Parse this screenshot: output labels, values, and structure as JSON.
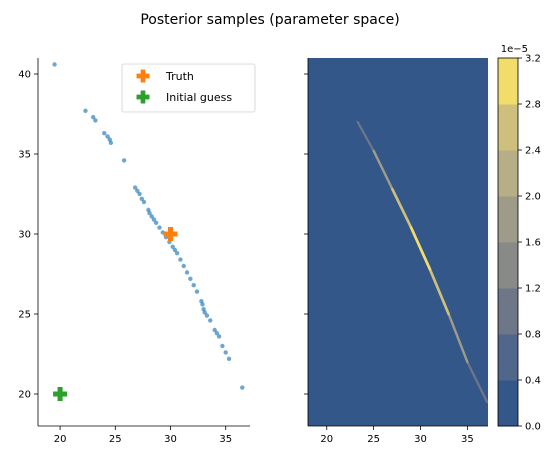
{
  "figure": {
    "title": "Posterior samples (parameter space)"
  },
  "chart_data": [
    {
      "type": "scatter",
      "title": "",
      "xlabel": "",
      "ylabel": "",
      "xlim": [
        18,
        37.2
      ],
      "ylim": [
        18,
        41
      ],
      "xticks": [
        20,
        25,
        30,
        35
      ],
      "yticks": [
        20,
        25,
        30,
        35,
        40
      ],
      "grid": false,
      "legend": "top-center",
      "colors": {
        "samples": "#1f77b4",
        "truth": "#ff7f0e",
        "initial": "#2ca02c"
      },
      "series": [
        {
          "name": "",
          "points": [
            [
              19.5,
              40.6
            ],
            [
              22.3,
              37.7
            ],
            [
              23.0,
              37.3
            ],
            [
              23.2,
              37.1
            ],
            [
              24.0,
              36.3
            ],
            [
              24.3,
              36.1
            ],
            [
              24.5,
              35.9
            ],
            [
              24.6,
              35.7
            ],
            [
              25.8,
              34.6
            ],
            [
              26.8,
              32.9
            ],
            [
              27.0,
              32.7
            ],
            [
              27.2,
              32.5
            ],
            [
              27.4,
              32.2
            ],
            [
              27.6,
              32.0
            ],
            [
              28.0,
              31.5
            ],
            [
              28.1,
              31.3
            ],
            [
              28.3,
              31.1
            ],
            [
              28.5,
              30.9
            ],
            [
              28.7,
              30.7
            ],
            [
              29.0,
              30.4
            ],
            [
              29.3,
              30.1
            ],
            [
              29.6,
              29.8
            ],
            [
              29.9,
              29.5
            ],
            [
              30.2,
              29.2
            ],
            [
              30.4,
              29.0
            ],
            [
              30.6,
              28.8
            ],
            [
              30.9,
              28.4
            ],
            [
              31.2,
              28.0
            ],
            [
              31.5,
              27.6
            ],
            [
              31.8,
              27.2
            ],
            [
              32.1,
              26.8
            ],
            [
              32.4,
              26.4
            ],
            [
              32.8,
              25.8
            ],
            [
              32.9,
              25.6
            ],
            [
              33.0,
              25.3
            ],
            [
              33.1,
              25.1
            ],
            [
              33.3,
              24.9
            ],
            [
              33.6,
              24.6
            ],
            [
              34.0,
              24.0
            ],
            [
              34.2,
              23.8
            ],
            [
              34.4,
              23.6
            ],
            [
              34.7,
              23.0
            ],
            [
              35.0,
              22.6
            ],
            [
              35.3,
              22.2
            ],
            [
              36.5,
              20.4
            ]
          ]
        },
        {
          "name": "Truth",
          "points": [
            [
              30.0,
              30.0
            ]
          ]
        },
        {
          "name": "Initial guess",
          "points": [
            [
              20.0,
              20.0
            ]
          ]
        }
      ]
    },
    {
      "type": "heatmap",
      "title": "",
      "xlabel": "",
      "ylabel": "",
      "xlim": [
        18,
        37.2
      ],
      "ylim": [
        18,
        41
      ],
      "xticks": [
        20,
        25,
        30,
        35
      ],
      "grid": false,
      "colorbar": {
        "ticks": [
          "0.0",
          "0.4",
          "0.8",
          "1.2",
          "1.6",
          "2.0",
          "2.4",
          "2.8",
          "3.2"
        ],
        "multiplier": "1e−5",
        "levels": [
          "#34578a",
          "#50668b",
          "#6d7788",
          "#888a88",
          "#9e9b88",
          "#b6ae87",
          "#cfbf7c",
          "#f2dc6a"
        ]
      },
      "ridge": [
        [
          23.3,
          37.0
        ],
        [
          25.0,
          35.2
        ],
        [
          27.0,
          32.8
        ],
        [
          29.0,
          30.4
        ],
        [
          31.0,
          27.8
        ],
        [
          33.0,
          25.0
        ],
        [
          35.0,
          22.0
        ],
        [
          37.1,
          19.5
        ]
      ]
    }
  ]
}
